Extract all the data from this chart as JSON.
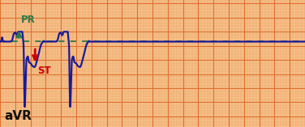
{
  "background_color": "#f5c08a",
  "grid_major_color": "#e07030",
  "grid_minor_color": "#eda060",
  "ecg_color": "#1a1a9a",
  "dotted_line_color": "#2a7a4a",
  "title_text": "aVR",
  "pr_label": "PR",
  "st_label": "ST",
  "pr_arrow_color": "#2a7a4a",
  "st_arrow_color": "#cc0000",
  "st_label_color": "#cc0000",
  "pr_label_color": "#2a7a4a",
  "figsize": [
    3.76,
    1.57
  ],
  "dpi": 100,
  "xlim": [
    0,
    10
  ],
  "ylim": [
    -2.2,
    1.4
  ],
  "baseline": 0.22,
  "dotted_y": 0.22
}
